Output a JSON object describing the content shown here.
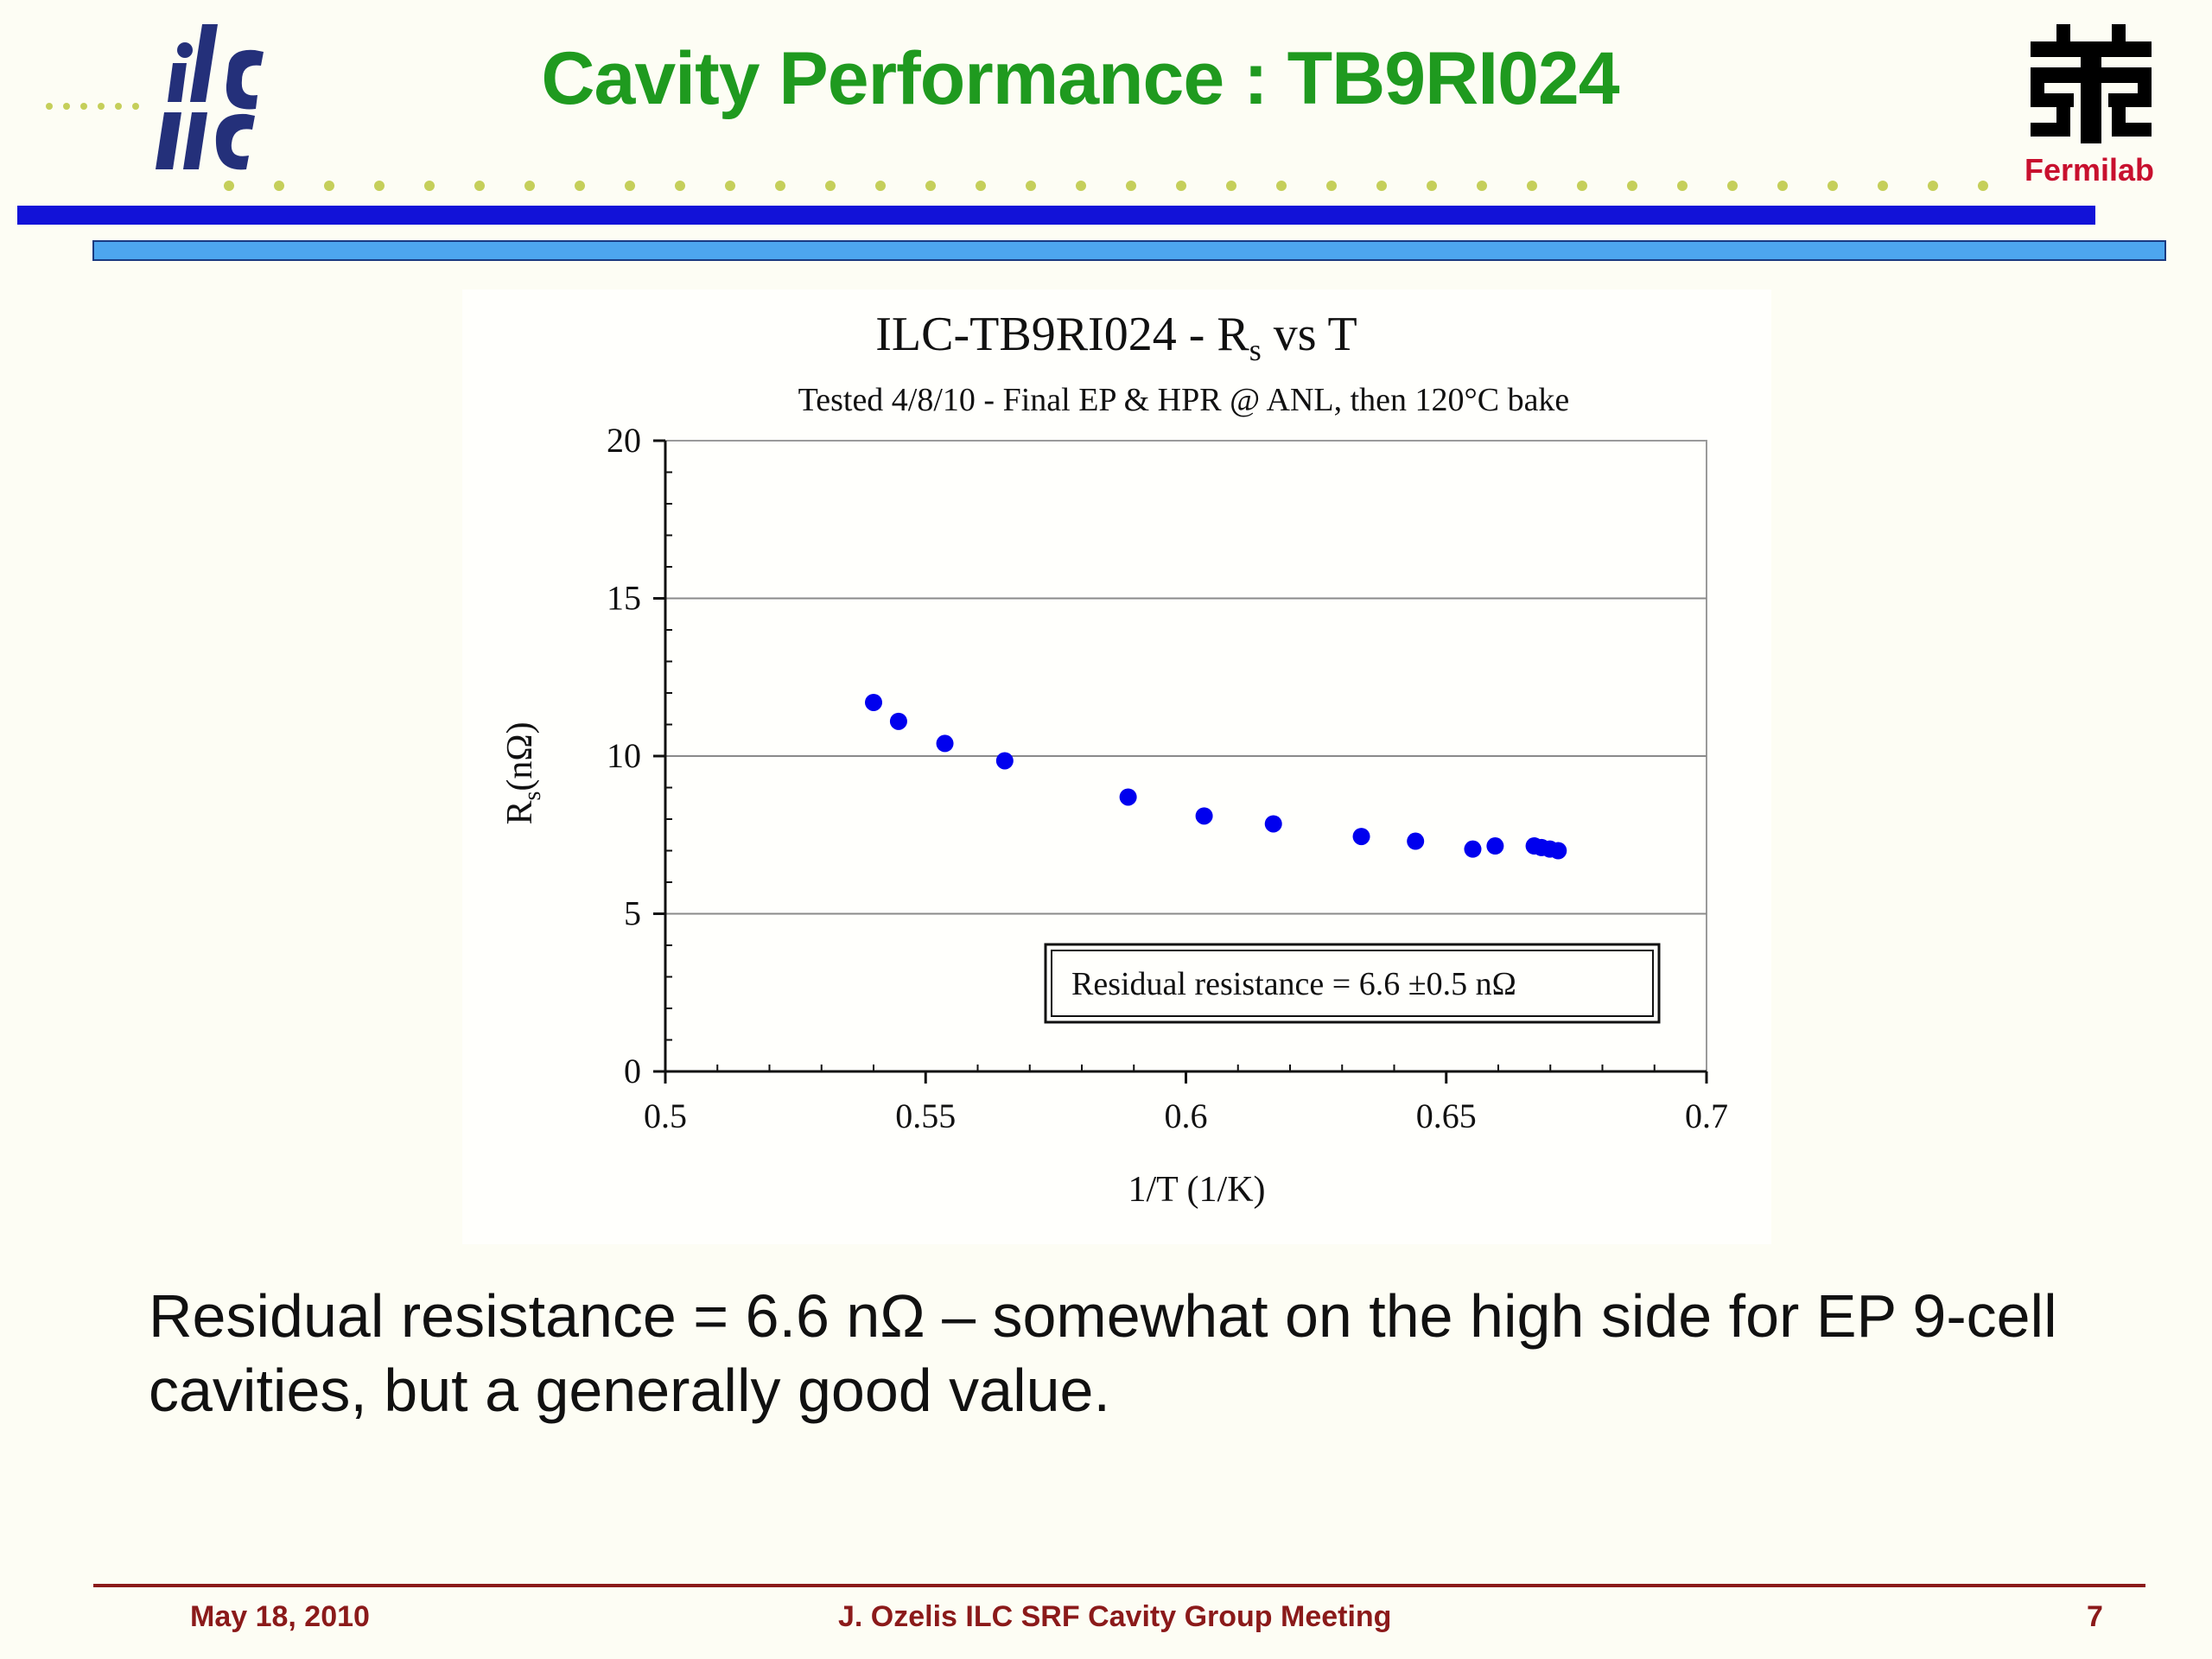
{
  "slide": {
    "title": "Cavity Performance : TB9RI024",
    "logo_left_text": "ilc",
    "logo_right_text": "Fermilab",
    "body": "Residual resistance = 6.6 nΩ – somewhat on the high side for EP 9-cell cavities, but a generally good value."
  },
  "footer": {
    "date": "May 18,  2010",
    "center": "J. Ozelis  ILC SRF Cavity Group Meeting",
    "page": "7"
  },
  "colors": {
    "title_green": "#1f9a1f",
    "bar_dark": "#1212d8",
    "bar_light": "#4da6ee",
    "footer_red": "#8b1a1a",
    "marker_blue": "#0000ee"
  },
  "chart_data": {
    "type": "scatter",
    "title_main": "ILC-TB9RI024 - R",
    "title_sub_script": "s",
    "title_rest": " vs T",
    "subtitle": "Tested 4/8/10 - Final EP & HPR @ ANL,  then 120°C bake",
    "xlabel": "1/T (1/K)",
    "ylabel_main": "R",
    "ylabel_sub": "s",
    "ylabel_rest": "(nΩ)",
    "xlim": [
      0.5,
      0.7
    ],
    "ylim": [
      0,
      20
    ],
    "xticks": [
      "0.5",
      "0.55",
      "0.6",
      "0.65",
      "0.7"
    ],
    "yticks": [
      "0",
      "5",
      "10",
      "15",
      "20"
    ],
    "grid": "horizontal",
    "annotation": "Residual resistance  = 6.6 ±0.5 nΩ",
    "series": [
      {
        "marker": "circle",
        "color": "#0000ee",
        "x": [
          0.54,
          0.5448,
          0.5537,
          0.5652,
          0.5889,
          0.6035,
          0.6168,
          0.6337,
          0.6441,
          0.6551,
          0.6594,
          0.6669,
          0.6683,
          0.6699,
          0.6715
        ],
        "y": [
          11.7,
          11.1,
          10.4,
          9.85,
          8.7,
          8.1,
          7.85,
          7.45,
          7.3,
          7.05,
          7.15,
          7.15,
          7.1,
          7.05,
          7.0
        ]
      }
    ]
  }
}
